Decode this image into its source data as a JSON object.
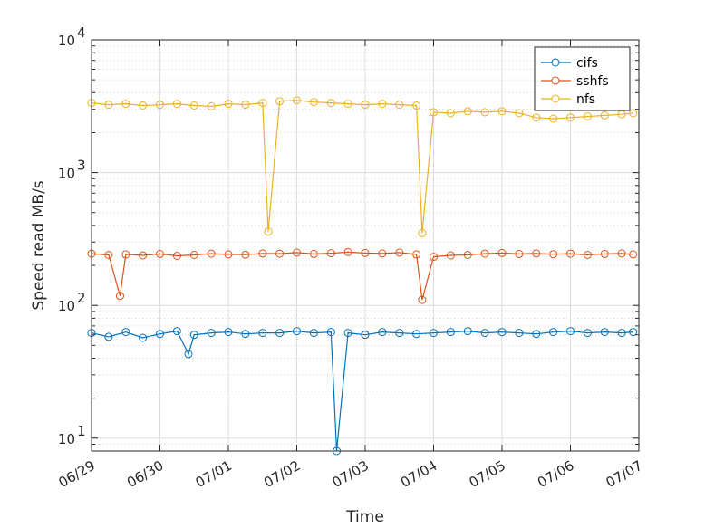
{
  "chart_data": {
    "type": "line",
    "marker": "circle-open",
    "xlabel": "Time",
    "ylabel": "Speed read MB/s",
    "yscale": "log",
    "ylim": [
      8,
      10000
    ],
    "xlim": [
      "2020-06-29",
      "2020-07-07"
    ],
    "x_ticks": [
      {
        "date": "2020-06-29",
        "label": "06/29"
      },
      {
        "date": "2020-06-30",
        "label": "06/30"
      },
      {
        "date": "2020-07-01",
        "label": "07/01"
      },
      {
        "date": "2020-07-02",
        "label": "07/02"
      },
      {
        "date": "2020-07-03",
        "label": "07/03"
      },
      {
        "date": "2020-07-04",
        "label": "07/04"
      },
      {
        "date": "2020-07-05",
        "label": "07/05"
      },
      {
        "date": "2020-07-06",
        "label": "07/06"
      },
      {
        "date": "2020-07-07",
        "label": "07/07"
      }
    ],
    "y_ticks": [
      {
        "value": 10,
        "base": "10",
        "exp": "1"
      },
      {
        "value": 100,
        "base": "10",
        "exp": "2"
      },
      {
        "value": 1000,
        "base": "10",
        "exp": "3"
      },
      {
        "value": 10000,
        "base": "10",
        "exp": "4"
      }
    ],
    "grid": true,
    "minor_grid": true,
    "legend_position": "top-right",
    "series": [
      {
        "name": "cifs",
        "color": "#0072BD",
        "data": [
          [
            "2020-06-29 00:00",
            62
          ],
          [
            "2020-06-29 06:00",
            58
          ],
          [
            "2020-06-29 12:00",
            63
          ],
          [
            "2020-06-29 18:00",
            57
          ],
          [
            "2020-06-30 00:00",
            61
          ],
          [
            "2020-06-30 06:00",
            64
          ],
          [
            "2020-06-30 10:00",
            43
          ],
          [
            "2020-06-30 12:00",
            60
          ],
          [
            "2020-06-30 18:00",
            62
          ],
          [
            "2020-07-01 00:00",
            63
          ],
          [
            "2020-07-01 06:00",
            61
          ],
          [
            "2020-07-01 12:00",
            62
          ],
          [
            "2020-07-01 18:00",
            62
          ],
          [
            "2020-07-02 00:00",
            64
          ],
          [
            "2020-07-02 06:00",
            62
          ],
          [
            "2020-07-02 12:00",
            63
          ],
          [
            "2020-07-02 14:00",
            8
          ],
          [
            "2020-07-02 18:00",
            62
          ],
          [
            "2020-07-03 00:00",
            60
          ],
          [
            "2020-07-03 06:00",
            63
          ],
          [
            "2020-07-03 12:00",
            62
          ],
          [
            "2020-07-03 18:00",
            61
          ],
          [
            "2020-07-04 00:00",
            62
          ],
          [
            "2020-07-04 06:00",
            63
          ],
          [
            "2020-07-04 12:00",
            64
          ],
          [
            "2020-07-04 18:00",
            62
          ],
          [
            "2020-07-05 00:00",
            63
          ],
          [
            "2020-07-05 06:00",
            62
          ],
          [
            "2020-07-05 12:00",
            61
          ],
          [
            "2020-07-05 18:00",
            63
          ],
          [
            "2020-07-06 00:00",
            64
          ],
          [
            "2020-07-06 06:00",
            62
          ],
          [
            "2020-07-06 12:00",
            63
          ],
          [
            "2020-07-06 18:00",
            62
          ],
          [
            "2020-07-06 22:00",
            63
          ]
        ]
      },
      {
        "name": "sshfs",
        "color": "#D95319",
        "data": [
          [
            "2020-06-29 00:00",
            245
          ],
          [
            "2020-06-29 06:00",
            240
          ],
          [
            "2020-06-29 10:00",
            118
          ],
          [
            "2020-06-29 12:00",
            242
          ],
          [
            "2020-06-29 18:00",
            238
          ],
          [
            "2020-06-30 00:00",
            244
          ],
          [
            "2020-06-30 06:00",
            236
          ],
          [
            "2020-06-30 12:00",
            240
          ],
          [
            "2020-06-30 18:00",
            245
          ],
          [
            "2020-07-01 00:00",
            242
          ],
          [
            "2020-07-01 06:00",
            241
          ],
          [
            "2020-07-01 12:00",
            246
          ],
          [
            "2020-07-01 18:00",
            245
          ],
          [
            "2020-07-02 00:00",
            250
          ],
          [
            "2020-07-02 06:00",
            244
          ],
          [
            "2020-07-02 12:00",
            247
          ],
          [
            "2020-07-02 18:00",
            252
          ],
          [
            "2020-07-03 00:00",
            248
          ],
          [
            "2020-07-03 06:00",
            246
          ],
          [
            "2020-07-03 12:00",
            250
          ],
          [
            "2020-07-03 18:00",
            242
          ],
          [
            "2020-07-03 20:00",
            110
          ],
          [
            "2020-07-04 00:00",
            232
          ],
          [
            "2020-07-04 06:00",
            238
          ],
          [
            "2020-07-04 12:00",
            240
          ],
          [
            "2020-07-04 18:00",
            245
          ],
          [
            "2020-07-05 00:00",
            248
          ],
          [
            "2020-07-05 06:00",
            244
          ],
          [
            "2020-07-05 12:00",
            246
          ],
          [
            "2020-07-05 18:00",
            243
          ],
          [
            "2020-07-06 00:00",
            245
          ],
          [
            "2020-07-06 06:00",
            240
          ],
          [
            "2020-07-06 12:00",
            244
          ],
          [
            "2020-07-06 18:00",
            246
          ],
          [
            "2020-07-06 22:00",
            242
          ]
        ]
      },
      {
        "name": "nfs",
        "color": "#EDB120",
        "data": [
          [
            "2020-06-29 00:00",
            3350
          ],
          [
            "2020-06-29 06:00",
            3250
          ],
          [
            "2020-06-29 12:00",
            3300
          ],
          [
            "2020-06-29 18:00",
            3200
          ],
          [
            "2020-06-30 00:00",
            3250
          ],
          [
            "2020-06-30 06:00",
            3300
          ],
          [
            "2020-06-30 12:00",
            3200
          ],
          [
            "2020-06-30 18:00",
            3150
          ],
          [
            "2020-07-01 00:00",
            3300
          ],
          [
            "2020-07-01 06:00",
            3250
          ],
          [
            "2020-07-01 12:00",
            3350
          ],
          [
            "2020-07-01 14:00",
            360
          ],
          [
            "2020-07-01 18:00",
            3450
          ],
          [
            "2020-07-02 00:00",
            3500
          ],
          [
            "2020-07-02 06:00",
            3400
          ],
          [
            "2020-07-02 12:00",
            3350
          ],
          [
            "2020-07-02 18:00",
            3300
          ],
          [
            "2020-07-03 00:00",
            3250
          ],
          [
            "2020-07-03 06:00",
            3300
          ],
          [
            "2020-07-03 12:00",
            3250
          ],
          [
            "2020-07-03 18:00",
            3200
          ],
          [
            "2020-07-03 20:00",
            350
          ],
          [
            "2020-07-04 00:00",
            2850
          ],
          [
            "2020-07-04 06:00",
            2800
          ],
          [
            "2020-07-04 12:00",
            2900
          ],
          [
            "2020-07-04 18:00",
            2850
          ],
          [
            "2020-07-05 00:00",
            2900
          ],
          [
            "2020-07-05 06:00",
            2800
          ],
          [
            "2020-07-05 12:00",
            2600
          ],
          [
            "2020-07-05 18:00",
            2550
          ],
          [
            "2020-07-06 00:00",
            2600
          ],
          [
            "2020-07-06 06:00",
            2650
          ],
          [
            "2020-07-06 12:00",
            2700
          ],
          [
            "2020-07-06 18:00",
            2750
          ],
          [
            "2020-07-06 22:00",
            2800
          ]
        ]
      }
    ]
  }
}
